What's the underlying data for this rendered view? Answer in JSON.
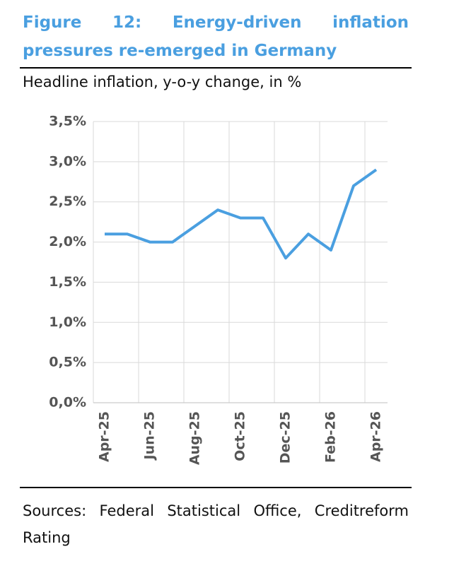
{
  "chart_data": {
    "type": "line",
    "title": "Figure 12: Energy-driven inflation pressures re-emerged in Germany",
    "subtitle": "Headline inflation, y-o-y change, in %",
    "source": "Sources: Federal Statistical Office, Creditreform Rating",
    "categories": [
      "Apr-25",
      null,
      "Jun-25",
      null,
      "Aug-25",
      null,
      "Oct-25",
      null,
      "Dec-25",
      null,
      "Feb-26",
      null,
      "Apr-26"
    ],
    "values": [
      2.1,
      2.1,
      2.0,
      2.0,
      2.2,
      2.4,
      2.3,
      2.3,
      1.8,
      2.1,
      1.9,
      2.7,
      2.9
    ],
    "color": "#4a9fe0",
    "ylim": [
      0,
      3.5
    ],
    "yticks": [
      {
        "value": 0,
        "label": "0,0%"
      },
      {
        "value": 0.5,
        "label": "0,5%"
      },
      {
        "value": 1,
        "label": "1,0%"
      },
      {
        "value": 1.5,
        "label": "1,5%"
      },
      {
        "value": 2,
        "label": "2,0%"
      },
      {
        "value": 2.5,
        "label": "2,5%"
      },
      {
        "value": 3,
        "label": "3,0%"
      },
      {
        "value": 3.5,
        "label": "3,5%"
      }
    ],
    "grid": true
  }
}
